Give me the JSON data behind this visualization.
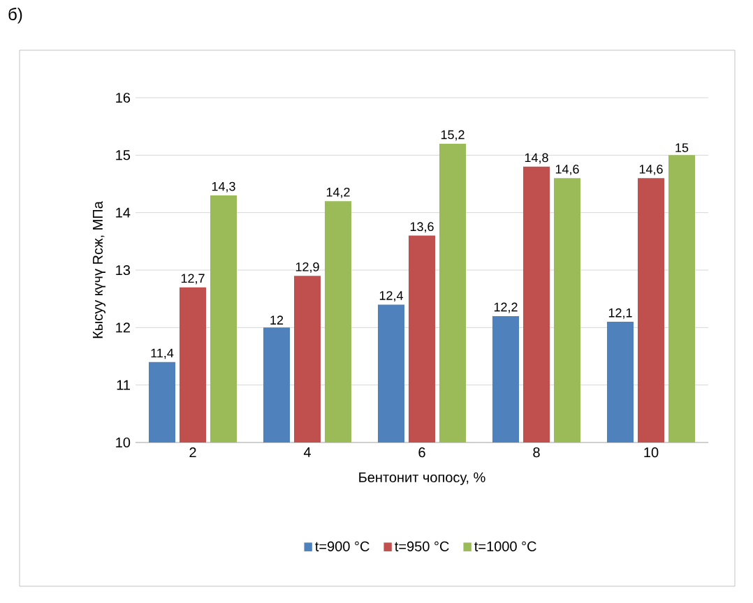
{
  "chart_data": {
    "type": "bar",
    "xlabel": "Бентонит чопосу, %",
    "ylabel": "Кысуу күчү  Rсж, МПа",
    "annotations": [
      "б)"
    ],
    "categories": [
      "2",
      "4",
      "6",
      "8",
      "10"
    ],
    "series": [
      {
        "name": "t=900 °C",
        "color": "#4f81bd",
        "values": [
          11.4,
          12,
          12.4,
          12.2,
          12.1
        ],
        "value_labels": [
          "11,4",
          "12",
          "12,4",
          "12,2",
          "12,1"
        ]
      },
      {
        "name": "t=950 °C",
        "color": "#c0504d",
        "values": [
          12.7,
          12.9,
          13.6,
          14.8,
          14.6
        ],
        "value_labels": [
          "12,7",
          "12,9",
          "13,6",
          "14,8",
          "14,6"
        ]
      },
      {
        "name": "t=1000 °C",
        "color": "#9bbb59",
        "values": [
          14.3,
          14.2,
          15.2,
          14.6,
          15
        ],
        "value_labels": [
          "14,3",
          "14,2",
          "15,2",
          "14,6",
          "15"
        ]
      }
    ],
    "ylim": [
      10,
      16
    ],
    "yticks": [
      10,
      11,
      12,
      13,
      14,
      15,
      16
    ],
    "grid": "y",
    "legend": "bottom"
  }
}
